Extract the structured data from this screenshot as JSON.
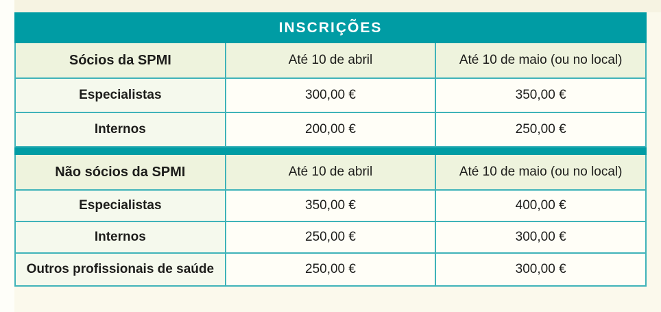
{
  "title": "INSCRIÇÕES",
  "colors": {
    "accent_teal": "#009ca4",
    "border_teal": "#3fb3b9",
    "header_row_bg": "#eef3dd",
    "label_cell_bg": "#f5f9ed",
    "price_cell_bg": "#fffef7",
    "page_background": "#fbf9ec",
    "title_text": "#ffffff",
    "body_text": "#1d1d1b"
  },
  "sections": [
    {
      "header": [
        "Sócios da SPMI",
        "Até 10 de abril",
        "Até 10 de maio (ou no local)"
      ],
      "rows": [
        [
          "Especialistas",
          "300,00 €",
          "350,00 €"
        ],
        [
          "Internos",
          "200,00 €",
          "250,00 €"
        ]
      ]
    },
    {
      "header": [
        "Não sócios da SPMI",
        "Até 10 de abril",
        "Até 10 de maio (ou no local)"
      ],
      "rows": [
        [
          "Especialistas",
          "350,00 €",
          "400,00 €"
        ],
        [
          "Internos",
          "250,00 €",
          "300,00 €"
        ],
        [
          "Outros profissionais de saúde",
          "250,00 €",
          "300,00 €"
        ]
      ]
    }
  ]
}
